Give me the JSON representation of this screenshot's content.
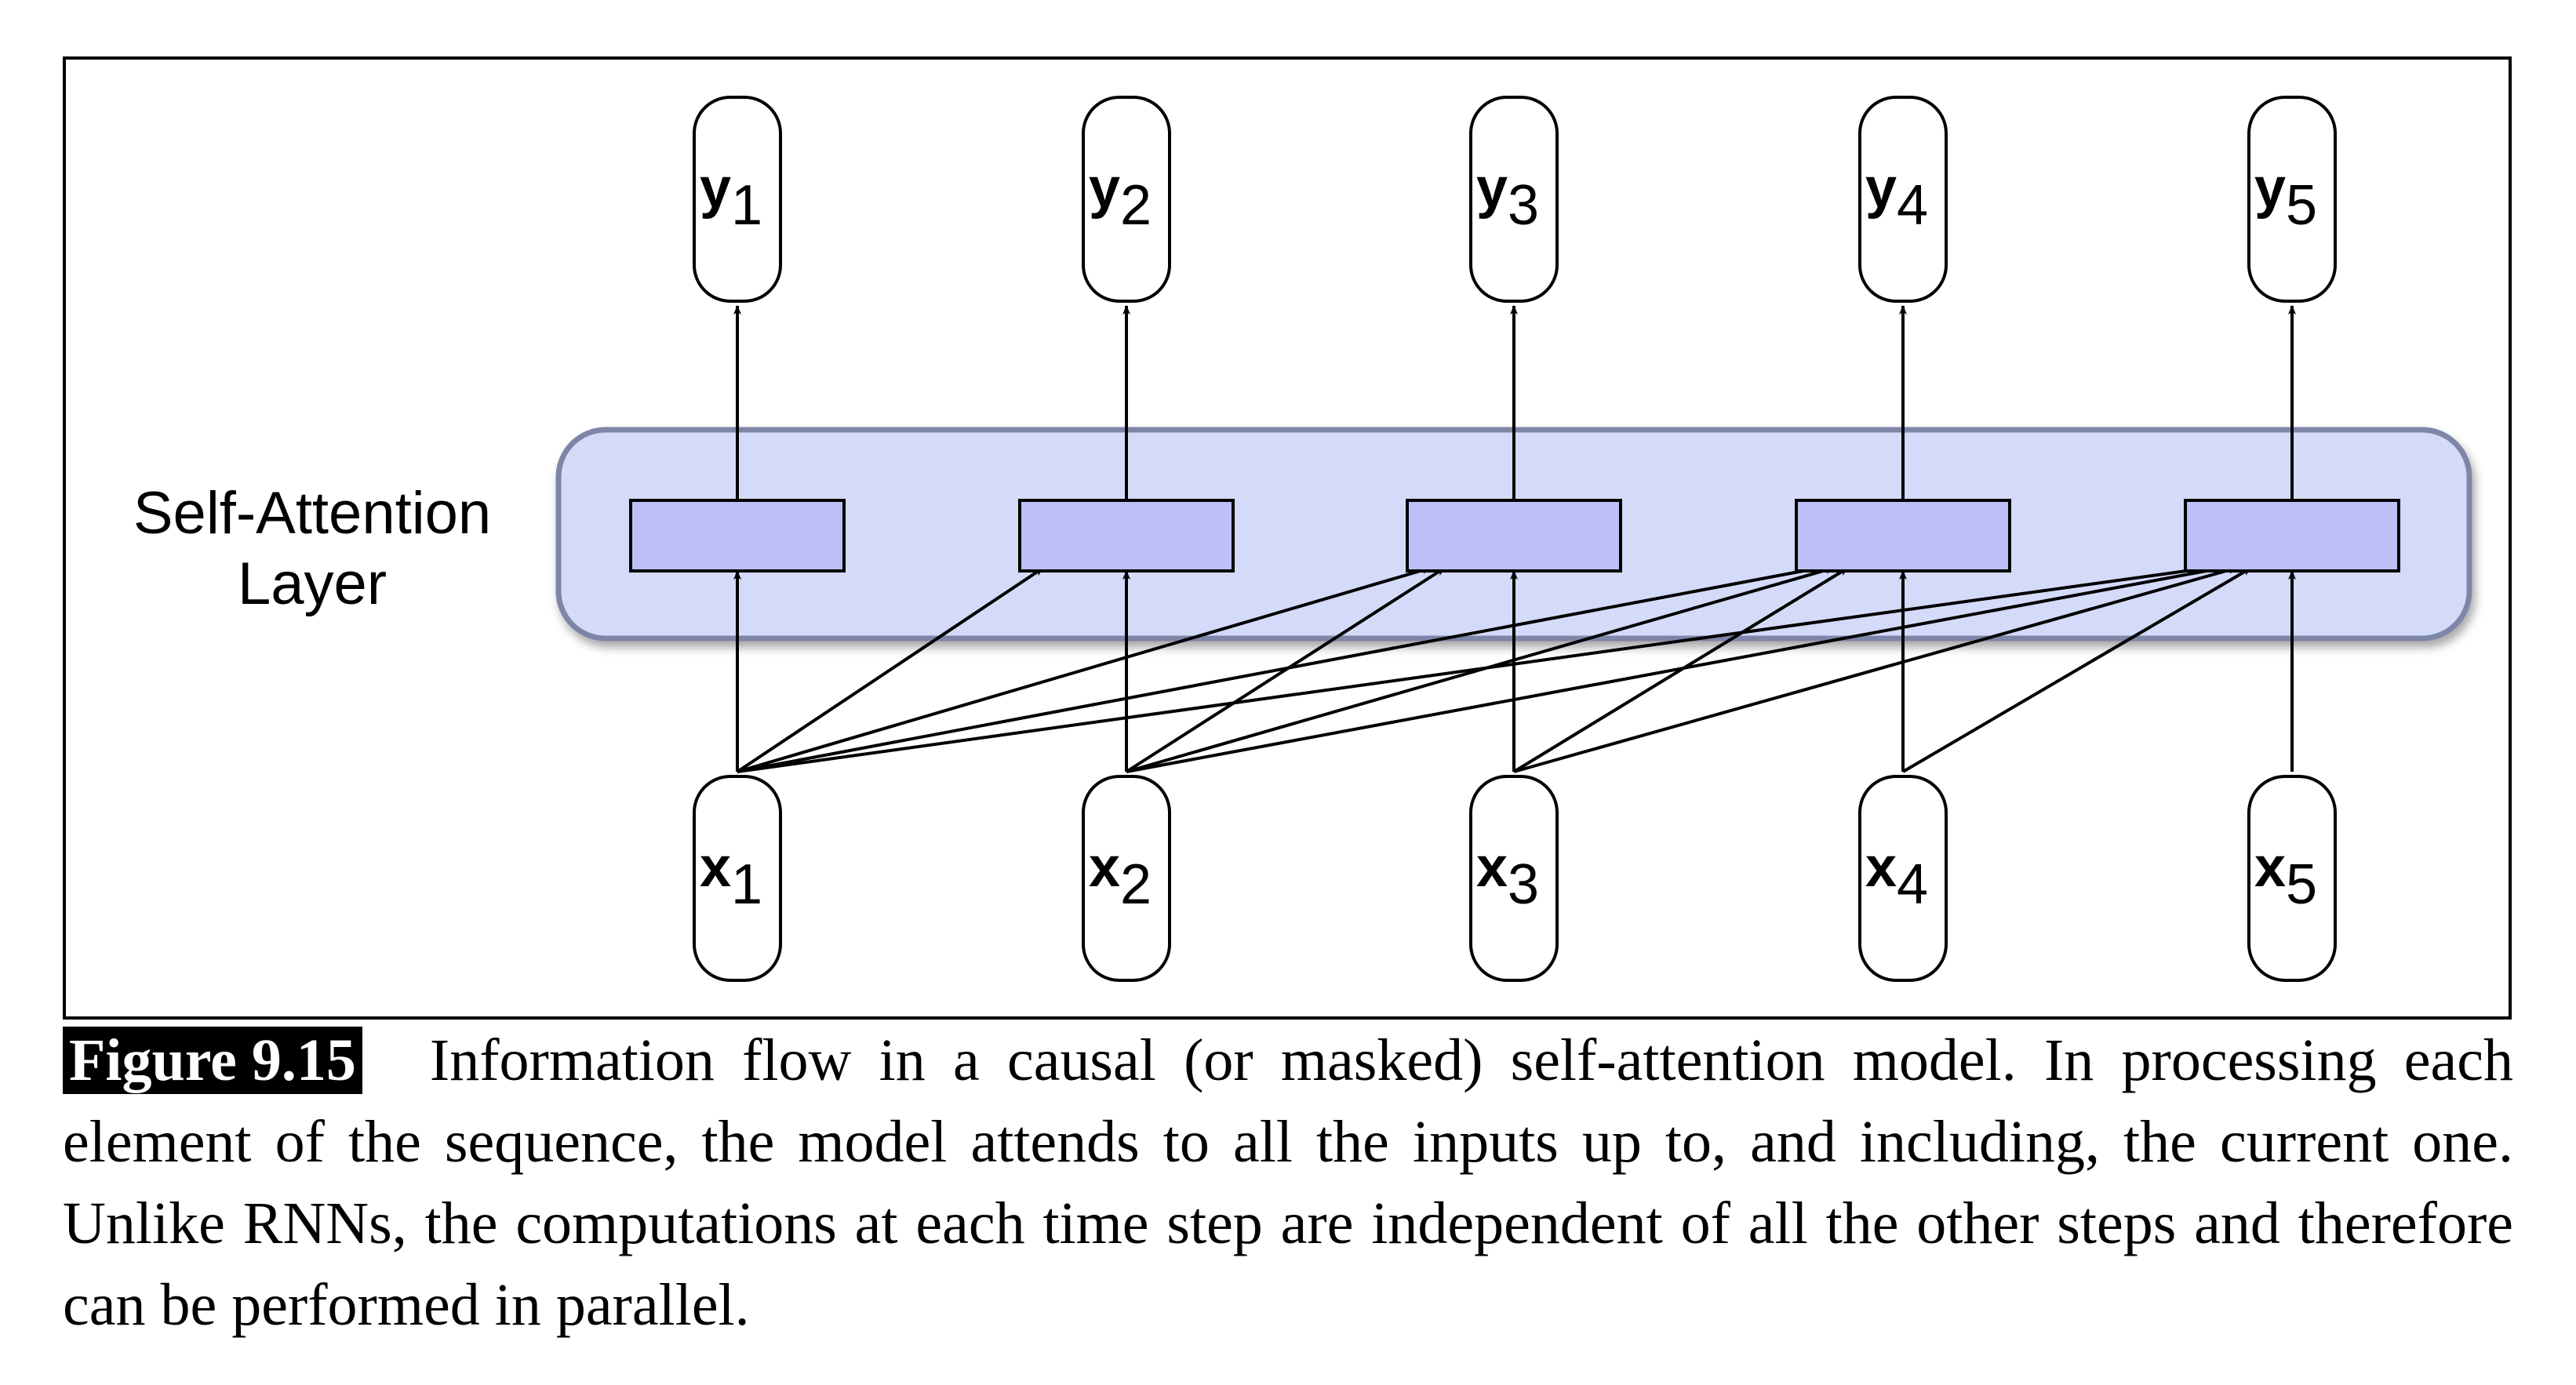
{
  "diagram": {
    "layer_label_line1": "Self-Attention",
    "layer_label_line2": "Layer",
    "inputs": [
      {
        "base": "x",
        "sub": "1"
      },
      {
        "base": "x",
        "sub": "2"
      },
      {
        "base": "x",
        "sub": "3"
      },
      {
        "base": "x",
        "sub": "4"
      },
      {
        "base": "x",
        "sub": "5"
      }
    ],
    "outputs": [
      {
        "base": "y",
        "sub": "1"
      },
      {
        "base": "y",
        "sub": "2"
      },
      {
        "base": "y",
        "sub": "3"
      },
      {
        "base": "y",
        "sub": "4"
      },
      {
        "base": "y",
        "sub": "5"
      }
    ],
    "colors": {
      "layer_fill": "#d4dbf8",
      "layer_stroke": "#7e86a8",
      "unit_fill": "#bcc0f6",
      "line": "#000000"
    }
  },
  "caption": {
    "label": "Figure 9.15",
    "text": "Information flow in a causal (or masked) self-attention model. In processing each element of the sequence, the model attends to all the inputs up to, and including, the current one. Unlike RNNs, the computations at each time step are independent of all the other steps and therefore can be performed in parallel."
  }
}
